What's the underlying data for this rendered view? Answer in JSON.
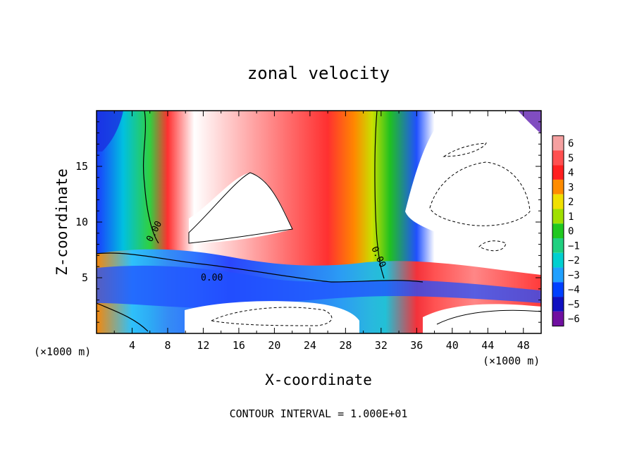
{
  "chart_data": {
    "type": "heatmap",
    "title": "zonal velocity",
    "xlabel": "X-coordinate",
    "ylabel": "Z-coordinate",
    "x_unit_left": "(×1000 m)",
    "x_unit_right": "(×1000 m)",
    "xlim": [
      0,
      50
    ],
    "ylim": [
      0,
      20
    ],
    "x_ticks": [
      4,
      8,
      12,
      16,
      20,
      24,
      28,
      32,
      36,
      40,
      44,
      48
    ],
    "x_tick_labels": [
      "4",
      "8",
      "12",
      "16",
      "20",
      "24",
      "28",
      "32",
      "36",
      "40",
      "44",
      "48"
    ],
    "y_ticks": [
      5,
      10,
      15
    ],
    "y_tick_labels": [
      "5",
      "10",
      "15"
    ],
    "footer": "CONTOUR INTERVAL = 1.000E+01",
    "contour_labels": [
      "0.00",
      "0.00",
      "0.00"
    ],
    "colorbar": {
      "levels": [
        6,
        5,
        4,
        3,
        2,
        1,
        0,
        -1,
        -2,
        -3,
        -4,
        -5,
        -6
      ],
      "labels": [
        "6",
        "5",
        "4",
        "3",
        "2",
        "1",
        "0",
        "−1",
        "−2",
        "−3",
        "−4",
        "−5",
        "−6"
      ],
      "colors": [
        "#f5a0a0",
        "#ff5050",
        "#ff2020",
        "#ff8c00",
        "#f0e000",
        "#a0e000",
        "#20c820",
        "#20d080",
        "#00d0d0",
        "#20a0ff",
        "#0040ff",
        "#1010c0",
        "#7010a0"
      ]
    },
    "white_regions": "values outside the color range (above 6 or below -6) are shown white"
  }
}
